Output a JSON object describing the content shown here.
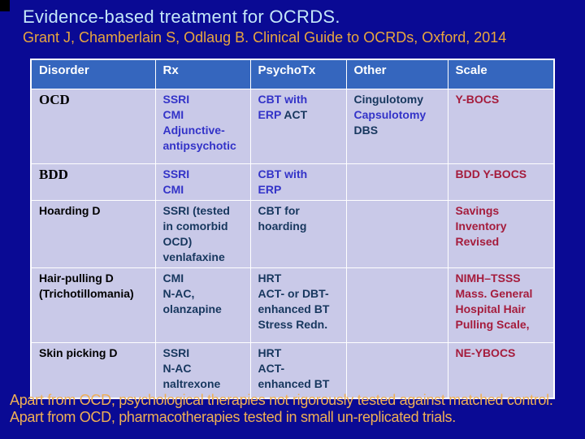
{
  "slide": {
    "title": "Evidence-based treatment for OCRDS.",
    "subtitle": "Grant J, Chamberlain S, Odlaug B. Clinical Guide to OCRDs, Oxford, 2014",
    "footer_lines": [
      "Apart from OCD, psychological therapies not rigorously tested against matched control.",
      "Apart from OCD, pharmacotherapies tested in small un-replicated trials."
    ]
  },
  "colors": {
    "background": "#0A0A94",
    "title_text": "#C4E7F8",
    "subtitle_text": "#E8A63E",
    "footer_text": "#EFAF55",
    "header_bg": "#3566BE",
    "header_text": "#FFFFFF",
    "cell_bg": "#C9C9E8",
    "text_purple": "#3333C8",
    "text_navy": "#17375E",
    "text_red": "#A51C3C"
  },
  "table": {
    "headers": [
      "Disorder",
      "Rx",
      "PsychoTx",
      "Other",
      "Scale"
    ],
    "rows": [
      {
        "disorder": [
          [
            {
              "t": "OCD",
              "c": "black-serif"
            }
          ]
        ],
        "rx": [
          [
            {
              "t": "SSRI",
              "c": "purple"
            }
          ],
          [
            {
              "t": "CMI",
              "c": "purple"
            }
          ],
          [
            {
              "t": "Adjunctive-",
              "c": "purple"
            }
          ],
          [
            {
              "t": "antipsychotic",
              "c": "purple"
            }
          ]
        ],
        "psychotx": [
          [
            {
              "t": "CBT with",
              "c": "purple"
            }
          ],
          [
            {
              "t": "ERP ",
              "c": "purple"
            },
            {
              "t": "ACT",
              "c": "navy"
            }
          ]
        ],
        "other": [
          [
            {
              "t": "Cingulotomy",
              "c": "navy"
            }
          ],
          [
            {
              "t": "Capsulotomy",
              "c": "purple"
            }
          ],
          [
            {
              "t": "DBS",
              "c": "navy"
            }
          ]
        ],
        "scale": [
          [
            {
              "t": "Y-BOCS",
              "c": "red"
            }
          ]
        ]
      },
      {
        "disorder": [
          [
            {
              "t": "BDD",
              "c": "black-serif"
            }
          ]
        ],
        "rx": [
          [
            {
              "t": "SSRI",
              "c": "purple"
            }
          ],
          [
            {
              "t": "CMI",
              "c": "purple"
            }
          ]
        ],
        "psychotx": [
          [
            {
              "t": "CBT with",
              "c": "purple"
            }
          ],
          [
            {
              "t": "ERP",
              "c": "purple"
            }
          ]
        ],
        "other": [],
        "scale": [
          [
            {
              "t": "BDD Y-BOCS",
              "c": "red"
            }
          ]
        ]
      },
      {
        "disorder": [
          [
            {
              "t": "Hoarding D",
              "c": "black"
            }
          ]
        ],
        "rx": [
          [
            {
              "t": "SSRI (tested",
              "c": "navy"
            }
          ],
          [
            {
              "t": "in comorbid",
              "c": "navy"
            }
          ],
          [
            {
              "t": "OCD)",
              "c": "navy"
            }
          ],
          [
            {
              "t": "venlafaxine",
              "c": "navy"
            }
          ]
        ],
        "psychotx": [
          [
            {
              "t": "CBT for",
              "c": "navy"
            }
          ],
          [
            {
              "t": "hoarding",
              "c": "navy"
            }
          ]
        ],
        "other": [],
        "scale": [
          [
            {
              "t": "Savings",
              "c": "red"
            }
          ],
          [
            {
              "t": "Inventory",
              "c": "red"
            }
          ],
          [
            {
              "t": "Revised",
              "c": "red"
            }
          ]
        ]
      },
      {
        "disorder": [
          [
            {
              "t": "Hair-pulling D",
              "c": "black"
            }
          ],
          [
            {
              "t": "(Trichotillomania)",
              "c": "black"
            }
          ]
        ],
        "rx": [
          [
            {
              "t": "CMI",
              "c": "navy"
            }
          ],
          [
            {
              "t": "N-AC,",
              "c": "navy"
            }
          ],
          [
            {
              "t": "olanzapine",
              "c": "navy"
            }
          ]
        ],
        "psychotx": [
          [
            {
              "t": "HRT",
              "c": "navy"
            }
          ],
          [
            {
              "t": "ACT- or DBT-",
              "c": "navy"
            }
          ],
          [
            {
              "t": "enhanced BT",
              "c": "navy"
            }
          ],
          [
            {
              "t": "Stress Redn.",
              "c": "navy"
            }
          ]
        ],
        "other": [],
        "scale": [
          [
            {
              "t": "NIMH–TSSS",
              "c": "red"
            }
          ],
          [
            {
              "t": "Mass. General",
              "c": "red"
            }
          ],
          [
            {
              "t": "Hospital Hair",
              "c": "red"
            }
          ],
          [
            {
              "t": "Pulling Scale,",
              "c": "red"
            }
          ]
        ]
      },
      {
        "disorder": [
          [
            {
              "t": "Skin picking D",
              "c": "black"
            }
          ]
        ],
        "rx": [
          [
            {
              "t": "SSRI",
              "c": "navy"
            }
          ],
          [
            {
              "t": "N-AC",
              "c": "navy"
            }
          ],
          [
            {
              "t": "naltrexone",
              "c": "navy"
            }
          ]
        ],
        "psychotx": [
          [
            {
              "t": "HRT",
              "c": "navy"
            }
          ],
          [
            {
              "t": "ACT-",
              "c": "navy"
            }
          ],
          [
            {
              "t": "enhanced BT",
              "c": "navy"
            }
          ]
        ],
        "other": [],
        "scale": [
          [
            {
              "t": "NE-YBOCS",
              "c": "red"
            }
          ]
        ]
      }
    ]
  }
}
